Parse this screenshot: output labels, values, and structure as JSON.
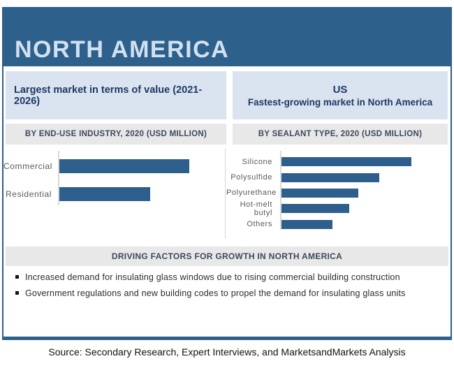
{
  "header": {
    "title": "NORTH AMERICA"
  },
  "highlights": {
    "largest_market": "Largest market in terms of value (2021-2026)",
    "fastest_country": "US",
    "fastest_label": "Fastest-growing market in North America"
  },
  "chart_data": [
    {
      "type": "bar",
      "orientation": "horizontal",
      "title": "BY END-USE INDUSTRY, 2020 (USD MILLION)",
      "categories": [
        "Commercial",
        "Residential"
      ],
      "values_relative_pct": [
        100,
        70
      ],
      "note": "No numeric value labels or axis ticks shown; values are bar lengths relative to the longest bar (=100)",
      "bar_color": "#2e5f8c",
      "grid": false,
      "legend": "none"
    },
    {
      "type": "bar",
      "orientation": "horizontal",
      "title": "BY SEALANT TYPE, 2020 (USD MILLION)",
      "categories": [
        "Silicone",
        "Polysulfide",
        "Polyurethane",
        "Hot-melt butyl",
        "Others"
      ],
      "values_relative_pct": [
        100,
        75,
        59,
        52,
        39
      ],
      "note": "No numeric value labels or axis ticks shown; values are bar lengths relative to the longest bar (=100)",
      "bar_color": "#2e5f8c",
      "grid": false,
      "legend": "none"
    }
  ],
  "driving_factors": {
    "title": "DRIVING FACTORS FOR GROWTH IN NORTH AMERICA",
    "items": [
      "Increased demand for insulating glass windows due to rising commercial building construction",
      "Government regulations and new building codes to propel the demand for insulating glass units"
    ]
  },
  "source": "Source: Secondary Research, Expert Interviews, and MarketsandMarkets Analysis",
  "colors": {
    "header_bg": "#2e608c",
    "header_text": "#d2e1f0",
    "info_box_bg": "#d9e4f0",
    "navy_text": "#1f3864",
    "section_bar_bg": "#e8e8e8",
    "section_text": "#3b4a5c",
    "bar_fill": "#2e5f8c",
    "chart_label_text": "#595959",
    "container_border": "#2d5f8b"
  }
}
